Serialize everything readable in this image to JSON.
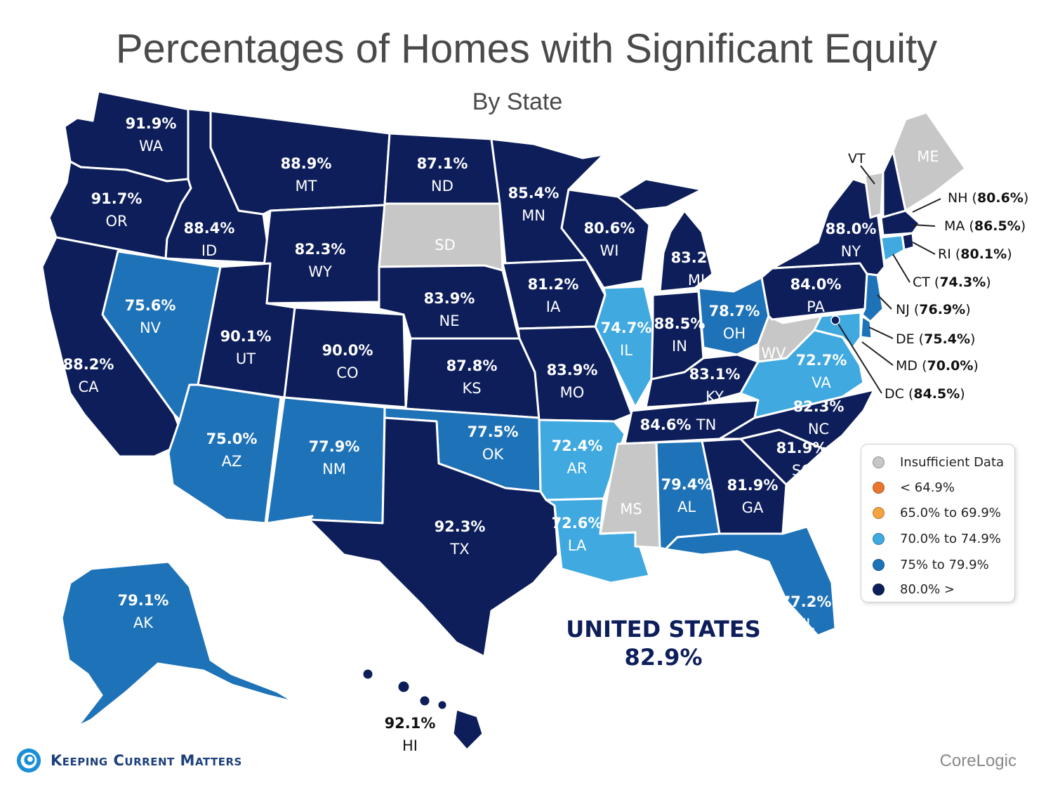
{
  "title": "Percentages of Homes with Significant Equity",
  "subtitle": "By State",
  "colors": {
    "insufficient": "#c7c7c7",
    "lt65": "#e8772e",
    "65to70": "#f4a340",
    "70to75": "#3fa9e0",
    "75to80": "#1e72b8",
    "gt80": "#0d1e5a"
  },
  "states": {
    "WA": {
      "pct": "91.9%",
      "abbr": "WA",
      "bin": "gt80"
    },
    "OR": {
      "pct": "91.7%",
      "abbr": "OR",
      "bin": "gt80"
    },
    "CA": {
      "pct": "88.2%",
      "abbr": "CA",
      "bin": "gt80"
    },
    "ID": {
      "pct": "88.4%",
      "abbr": "ID",
      "bin": "gt80"
    },
    "NV": {
      "pct": "75.6%",
      "abbr": "NV",
      "bin": "75to80"
    },
    "MT": {
      "pct": "88.9%",
      "abbr": "MT",
      "bin": "gt80"
    },
    "WY": {
      "pct": "82.3%",
      "abbr": "WY",
      "bin": "gt80"
    },
    "UT": {
      "pct": "90.1%",
      "abbr": "UT",
      "bin": "gt80"
    },
    "AZ": {
      "pct": "75.0%",
      "abbr": "AZ",
      "bin": "75to80"
    },
    "CO": {
      "pct": "90.0%",
      "abbr": "CO",
      "bin": "gt80"
    },
    "NM": {
      "pct": "77.9%",
      "abbr": "NM",
      "bin": "75to80"
    },
    "ND": {
      "pct": "87.1%",
      "abbr": "ND",
      "bin": "gt80"
    },
    "SD": {
      "pct": "",
      "abbr": "SD",
      "bin": "insufficient"
    },
    "NE": {
      "pct": "83.9%",
      "abbr": "NE",
      "bin": "gt80"
    },
    "KS": {
      "pct": "87.8%",
      "abbr": "KS",
      "bin": "gt80"
    },
    "OK": {
      "pct": "77.5%",
      "abbr": "OK",
      "bin": "75to80"
    },
    "TX": {
      "pct": "92.3%",
      "abbr": "TX",
      "bin": "gt80"
    },
    "MN": {
      "pct": "85.4%",
      "abbr": "MN",
      "bin": "gt80"
    },
    "IA": {
      "pct": "81.2%",
      "abbr": "IA",
      "bin": "gt80"
    },
    "MO": {
      "pct": "83.9%",
      "abbr": "MO",
      "bin": "gt80"
    },
    "AR": {
      "pct": "72.4%",
      "abbr": "AR",
      "bin": "70to75"
    },
    "LA": {
      "pct": "72.6%",
      "abbr": "LA",
      "bin": "70to75"
    },
    "WI": {
      "pct": "80.6%",
      "abbr": "WI",
      "bin": "gt80"
    },
    "IL": {
      "pct": "74.7%",
      "abbr": "IL",
      "bin": "70to75"
    },
    "MI": {
      "pct": "83.2%",
      "abbr": "MI",
      "bin": "gt80"
    },
    "IN": {
      "pct": "88.5%",
      "abbr": "IN",
      "bin": "gt80"
    },
    "OH": {
      "pct": "78.7%",
      "abbr": "OH",
      "bin": "75to80"
    },
    "KY": {
      "pct": "83.1%",
      "abbr": "KY",
      "bin": "gt80"
    },
    "TN": {
      "pct": "84.6%",
      "abbr": "TN",
      "bin": "gt80"
    },
    "MS": {
      "pct": "",
      "abbr": "MS",
      "bin": "insufficient"
    },
    "AL": {
      "pct": "79.4%",
      "abbr": "AL",
      "bin": "75to80"
    },
    "GA": {
      "pct": "81.9%",
      "abbr": "GA",
      "bin": "gt80"
    },
    "FL": {
      "pct": "77.2%",
      "abbr": "FL",
      "bin": "75to80"
    },
    "SC": {
      "pct": "81.9%",
      "abbr": "SC",
      "bin": "gt80"
    },
    "NC": {
      "pct": "82.3%",
      "abbr": "NC",
      "bin": "gt80"
    },
    "VA": {
      "pct": "72.7%",
      "abbr": "VA",
      "bin": "70to75"
    },
    "WV": {
      "pct": "",
      "abbr": "WV",
      "bin": "insufficient"
    },
    "PA": {
      "pct": "84.0%",
      "abbr": "PA",
      "bin": "gt80"
    },
    "NY": {
      "pct": "88.0%",
      "abbr": "NY",
      "bin": "gt80"
    },
    "VT": {
      "pct": "",
      "abbr": "VT",
      "bin": "insufficient"
    },
    "ME": {
      "pct": "",
      "abbr": "ME",
      "bin": "insufficient"
    },
    "NH": {
      "pct": "80.6%",
      "abbr": "NH",
      "bin": "gt80"
    },
    "MA": {
      "pct": "86.5%",
      "abbr": "MA",
      "bin": "gt80"
    },
    "RI": {
      "pct": "80.1%",
      "abbr": "RI",
      "bin": "gt80"
    },
    "CT": {
      "pct": "74.3%",
      "abbr": "CT",
      "bin": "70to75"
    },
    "NJ": {
      "pct": "76.9%",
      "abbr": "NJ",
      "bin": "75to80"
    },
    "DE": {
      "pct": "75.4%",
      "abbr": "DE",
      "bin": "75to80"
    },
    "MD": {
      "pct": "70.0%",
      "abbr": "MD",
      "bin": "70to75"
    },
    "DC": {
      "pct": "84.5%",
      "abbr": "DC",
      "bin": "gt80"
    },
    "AK": {
      "pct": "79.1%",
      "abbr": "AK",
      "bin": "75to80"
    },
    "HI": {
      "pct": "92.1%",
      "abbr": "HI",
      "bin": "gt80"
    }
  },
  "us_total": {
    "label": "UNITED STATES",
    "value": "82.9%"
  },
  "legend": {
    "items": [
      {
        "label": "Insufficient Data",
        "bin": "insufficient"
      },
      {
        "label": "< 64.9%",
        "bin": "lt65"
      },
      {
        "label": "65.0% to 69.9%",
        "bin": "65to70"
      },
      {
        "label": "70.0% to 74.9%",
        "bin": "70to75"
      },
      {
        "label": "75% to 79.9%",
        "bin": "75to80"
      },
      {
        "label": "80.0% >",
        "bin": "gt80"
      }
    ]
  },
  "brand": "Keeping Current Matters",
  "source": "CoreLogic"
}
